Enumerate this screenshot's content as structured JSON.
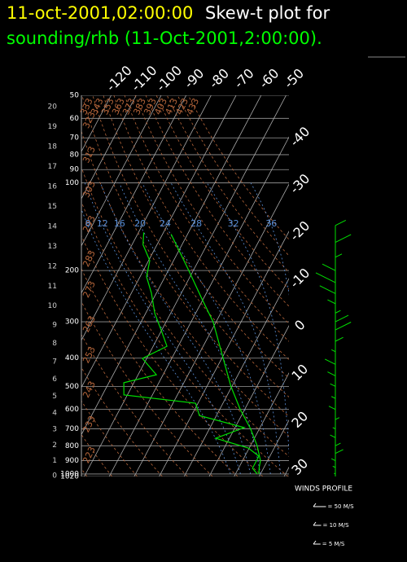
{
  "chart_data": {
    "type": "skewt",
    "title_time": "11-oct-2001,02:00:00",
    "title": "Skew-t plot for",
    "subtitle": "sounding/rhb (11-Oct-2001,2:00:00).",
    "plim": [
      50,
      1020
    ],
    "pticks": [
      50,
      60,
      70,
      80,
      90,
      100,
      200,
      300,
      400,
      500,
      600,
      700,
      800,
      900,
      1000,
      1020
    ],
    "height_ticks": [
      0,
      1,
      2,
      3,
      4,
      5,
      6,
      7,
      8,
      9,
      10,
      11,
      12,
      13,
      14,
      15,
      16,
      17,
      18,
      19,
      20
    ],
    "isotherms": [
      -120,
      -110,
      -100,
      -90,
      -80,
      -70,
      -60,
      -50,
      -40,
      -30,
      -20,
      -10,
      0,
      10,
      20,
      30
    ],
    "dry_adiabats": [
      223,
      233,
      243,
      253,
      263,
      273,
      283,
      293,
      303,
      313,
      323,
      333,
      343,
      353,
      363,
      373,
      383,
      393,
      403,
      413,
      423,
      433
    ],
    "moist_adiabats": [
      8,
      12,
      16,
      20,
      24,
      28,
      32,
      36
    ],
    "series": [
      {
        "color": "#00e000",
        "pressure": [
          1000,
          950,
          900,
          850,
          800,
          700,
          600,
          500,
          400,
          300,
          250,
          200,
          150
        ],
        "values": [
          19.4,
          18.1,
          17.2,
          15.0,
          12.7,
          6.5,
          -1.8,
          -10.4,
          -19.5,
          -31.2,
          -40.6,
          -51.8,
          -66.6
        ]
      },
      {
        "color": "#00e000",
        "pressure": [
          1000,
          956,
          869,
          814,
          754,
          693,
          630,
          571,
          535,
          486,
          456,
          401,
          364,
          320,
          281,
          239,
          210,
          185,
          163,
          148
        ],
        "values": [
          18.7,
          15.6,
          15.6,
          9.6,
          -5.5,
          3.7,
          -16.8,
          -21.0,
          -51.4,
          -54.0,
          -42.7,
          -51.7,
          -44.5,
          -50.3,
          -56.3,
          -62.0,
          -67.4,
          -69.5,
          -75.6,
          -77.9
        ]
      }
    ],
    "wind": {
      "title": "WINDS PROFILE",
      "color": "#00e000",
      "pressure": [
        140,
        160,
        180,
        200,
        220,
        240,
        260,
        280,
        300,
        320,
        350,
        380,
        420,
        460,
        500,
        550,
        600,
        650,
        700,
        750,
        800,
        850,
        900,
        950,
        1000
      ],
      "values": [
        8,
        12,
        5,
        -10,
        -15,
        -12,
        -6,
        4,
        10,
        12,
        6,
        -3,
        -8,
        -6,
        -4,
        -3,
        -5,
        3,
        -2,
        -4,
        4,
        6,
        -3,
        -2,
        -1
      ]
    },
    "wind_legend": [
      {
        "value": 50,
        "label": "= 50 M/S"
      },
      {
        "value": 10,
        "label": "= 10 M/S"
      },
      {
        "value": 5,
        "label": "= 5 M/S"
      }
    ]
  }
}
